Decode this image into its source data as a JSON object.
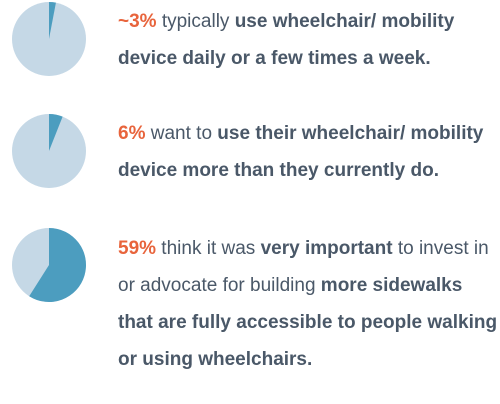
{
  "chart_data": [
    {
      "type": "pie",
      "values": [
        3
      ],
      "value_labels": [
        "~3%"
      ],
      "color": "#4c9dbf",
      "rest_color": "#c5d8e6",
      "caption": [
        {
          "text": " typically ",
          "bold": false
        },
        {
          "text": "use wheelchair/ mobility device daily or a few times a week.",
          "bold": true
        }
      ]
    },
    {
      "type": "pie",
      "values": [
        6
      ],
      "value_labels": [
        "6%"
      ],
      "color": "#4c9dbf",
      "rest_color": "#c5d8e6",
      "caption": [
        {
          "text": " want to ",
          "bold": false
        },
        {
          "text": "use their wheelchair/ mobility device more than they currently do.",
          "bold": true
        }
      ]
    },
    {
      "type": "pie",
      "values": [
        59
      ],
      "value_labels": [
        "59%"
      ],
      "color": "#4c9dbf",
      "rest_color": "#c5d8e6",
      "caption": [
        {
          "text": " think it was ",
          "bold": false
        },
        {
          "text": "very important",
          "bold": true
        },
        {
          "text": " to invest in or advocate for building ",
          "bold": false
        },
        {
          "text": "more sidewalks that are fully accessible to people walking or using wheelchairs.",
          "bold": true
        }
      ]
    }
  ]
}
